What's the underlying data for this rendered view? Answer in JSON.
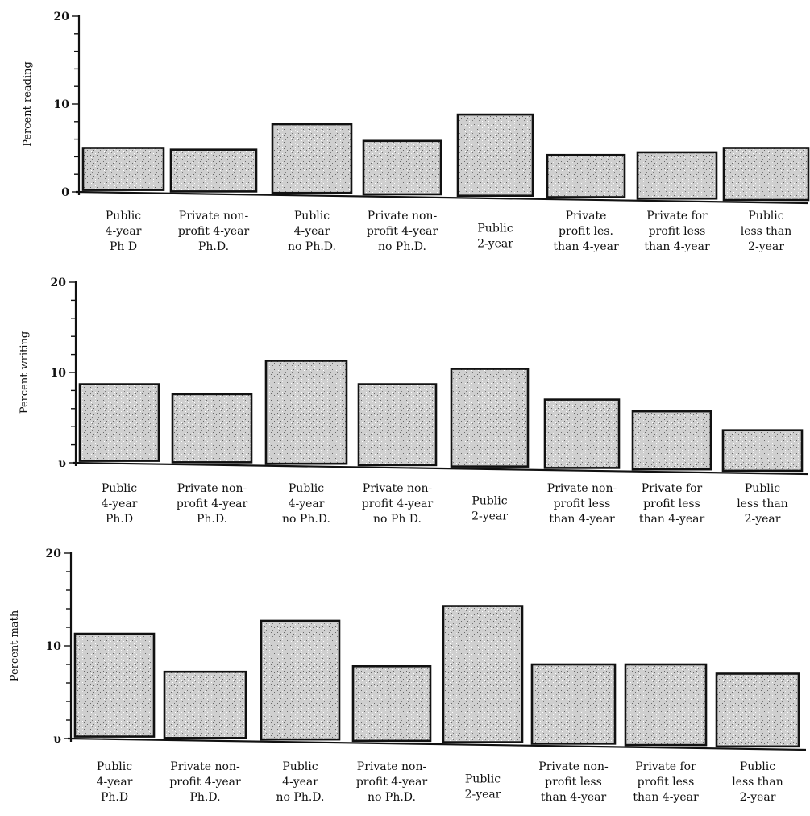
{
  "chart_data": [
    {
      "type": "bar",
      "ylabel": "Percent reading",
      "ylim": [
        0,
        20
      ],
      "yticks": [
        0,
        10,
        20
      ],
      "categories": [
        [
          "Public",
          "4-year",
          "Ph D"
        ],
        [
          "Private non-",
          "profit 4-year",
          "Ph.D."
        ],
        [
          "Public",
          "4-year",
          "no Ph.D."
        ],
        [
          "Private non-",
          "profit 4-year",
          "no Ph.D."
        ],
        [
          "Public",
          "2-year"
        ],
        [
          "Private",
          "profit les.",
          "than 4-year"
        ],
        [
          "Private for",
          "profit less",
          "than 4-year"
        ],
        [
          "Public",
          "less than",
          "2-year"
        ]
      ],
      "values": [
        5.0,
        4.8,
        7.7,
        5.8,
        8.8,
        4.2,
        4.5,
        5.0
      ]
    },
    {
      "type": "bar",
      "ylabel": "Percent writing",
      "ylim": [
        0,
        20
      ],
      "yticks": [
        0,
        10,
        20
      ],
      "ytick_labels": [
        "υ",
        "10",
        "20"
      ],
      "categories": [
        [
          "Public",
          "4-year",
          "Ph.D"
        ],
        [
          "Private non-",
          "profit 4-year",
          "Ph.D."
        ],
        [
          "Public",
          "4-year",
          "no Ph.D."
        ],
        [
          "Private non-",
          "profit 4-year",
          "no Ph D."
        ],
        [
          "Public",
          "2-year"
        ],
        [
          "Private non-",
          "profit less",
          "than 4-year"
        ],
        [
          "Private for",
          "profit less",
          "than 4-year"
        ],
        [
          "Public",
          "less than",
          "2-year"
        ]
      ],
      "values": [
        8.7,
        7.6,
        11.3,
        8.7,
        10.4,
        7.0,
        5.7,
        3.6
      ]
    },
    {
      "type": "bar",
      "ylabel": "Percent math",
      "ylim": [
        0,
        20
      ],
      "yticks": [
        0,
        10,
        20
      ],
      "ytick_labels": [
        "υ",
        "10",
        "20"
      ],
      "categories": [
        [
          "Public",
          "4-year",
          "Ph.D"
        ],
        [
          "Private non-",
          "profit 4-year",
          "Ph.D."
        ],
        [
          "Public",
          "4-year",
          "no Ph.D."
        ],
        [
          "Private non-",
          "profit 4-year",
          "no Ph.D."
        ],
        [
          "Public",
          "2-year"
        ],
        [
          "Private non-",
          "profit less",
          "than 4-year"
        ],
        [
          "Private for",
          "profit less",
          "than 4-year"
        ],
        [
          "Public",
          "less than",
          "2-year"
        ]
      ],
      "values": [
        11.3,
        7.2,
        12.7,
        7.8,
        14.3,
        8.0,
        8.0,
        7.0
      ]
    }
  ]
}
